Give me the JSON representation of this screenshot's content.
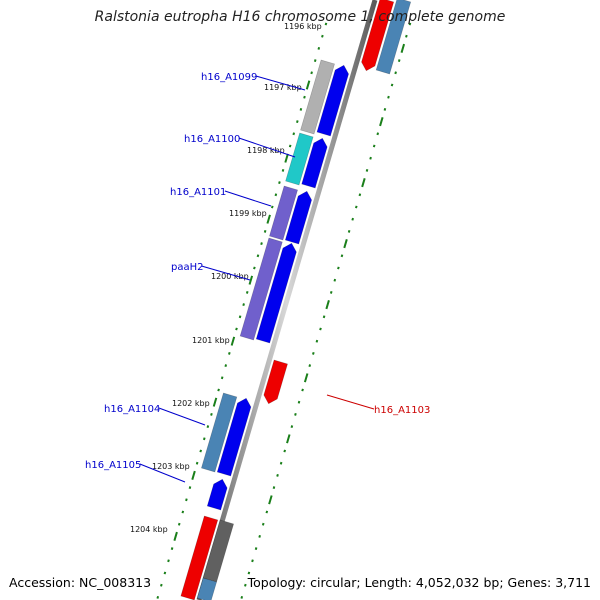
{
  "title": "Ralstonia eutropha H16 chromosome 1, complete genome",
  "footer": {
    "accession": "Accession: NC_008313",
    "summary": "Topology: circular; Length: 4,052,032 bp; Genes: 3,711"
  },
  "top_partial_label": "1196 kbp",
  "kbp_labels": [
    "1197 kbp",
    "1198 kbp",
    "1199 kbp",
    "1200 kbp",
    "1201 kbp",
    "1202 kbp",
    "1203 kbp",
    "1204 kbp"
  ],
  "gene_labels": [
    "h16_A1099",
    "h16_A1100",
    "h16_A1101",
    "paaH2",
    "h16_A1104",
    "h16_A1105",
    "h16_A1103"
  ],
  "colors": {
    "backbone": "#808080",
    "tick_green": "#1a7f1a",
    "cds_blue": "#0000ee",
    "cds_red": "#ee0000",
    "cog_gray": "#b0b0b0",
    "cog_cyan": "#20c8c8",
    "cog_purple": "#7060cc",
    "cog_steel": "#4a84b4",
    "cog_darkgray": "#606060",
    "label_blue": "#0000cc",
    "label_red": "#cc0000"
  }
}
